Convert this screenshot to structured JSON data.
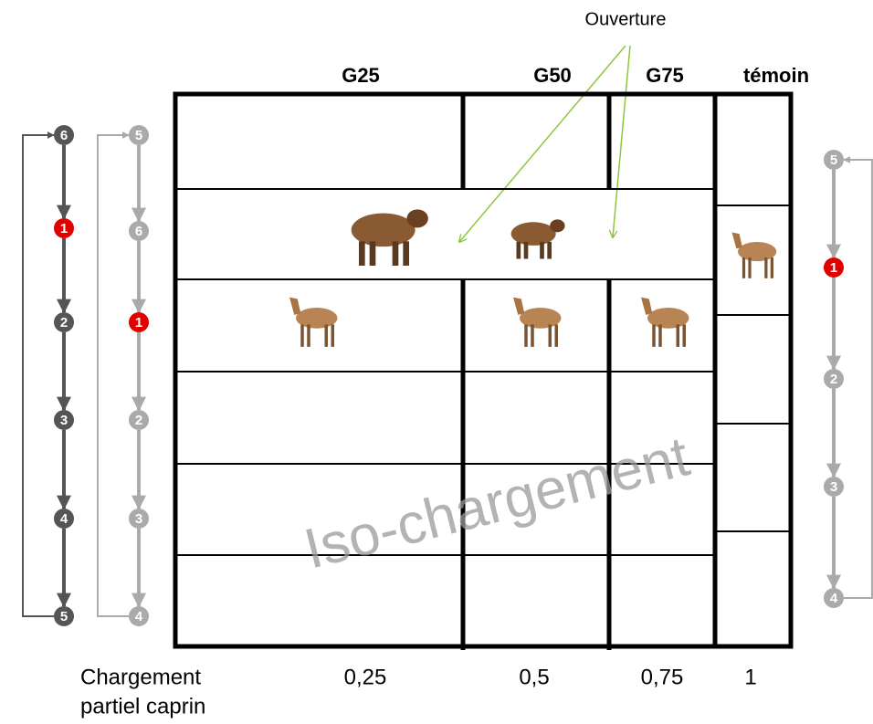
{
  "annotation": "Ouverture",
  "columns": [
    {
      "label": "G25",
      "load": "0,25"
    },
    {
      "label": "G50",
      "load": "0,5"
    },
    {
      "label": "G75",
      "load": "0,75"
    },
    {
      "label": "témoin",
      "load": "1"
    }
  ],
  "watermark": "Iso-chargement",
  "load_label": [
    "Chargement",
    "partiel caprin"
  ],
  "sequences": [
    {
      "steps": [
        "6",
        "1",
        "2",
        "3",
        "4",
        "5"
      ]
    },
    {
      "steps": [
        "5",
        "6",
        "1",
        "2",
        "3",
        "4"
      ]
    },
    {
      "steps": [
        "5",
        "1",
        "2",
        "3",
        "4"
      ]
    }
  ]
}
